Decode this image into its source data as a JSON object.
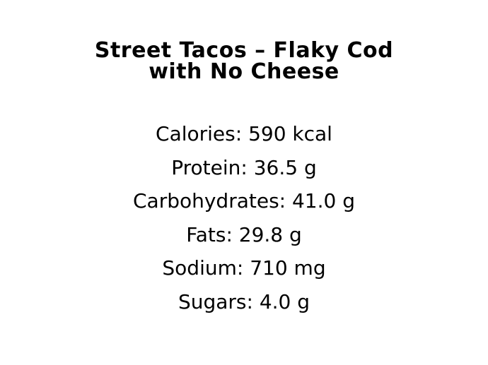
{
  "page": {
    "background_color": "#ffffff",
    "text_color": "#000000"
  },
  "title": {
    "line1": "Street Tacos – Flaky Cod",
    "line2": "with No Cheese",
    "full": "Street Tacos – Flaky Cod with No Cheese"
  },
  "nutrition": {
    "items": [
      {
        "label": "Calories",
        "amount": 590,
        "unit": "kcal",
        "display": "Calories: 590 kcal"
      },
      {
        "label": "Protein",
        "amount": 36.5,
        "unit": "g",
        "display": "Protein: 36.5 g"
      },
      {
        "label": "Carbohydrates",
        "amount": 41.0,
        "unit": "g",
        "display": "Carbohydrates: 41.0 g"
      },
      {
        "label": "Fats",
        "amount": 29.8,
        "unit": "g",
        "display": "Fats: 29.8 g"
      },
      {
        "label": "Sodium",
        "amount": 710,
        "unit": "mg",
        "display": "Sodium: 710 mg"
      },
      {
        "label": "Sugars",
        "amount": 4.0,
        "unit": "g",
        "display": "Sugars: 4.0 g"
      }
    ]
  }
}
